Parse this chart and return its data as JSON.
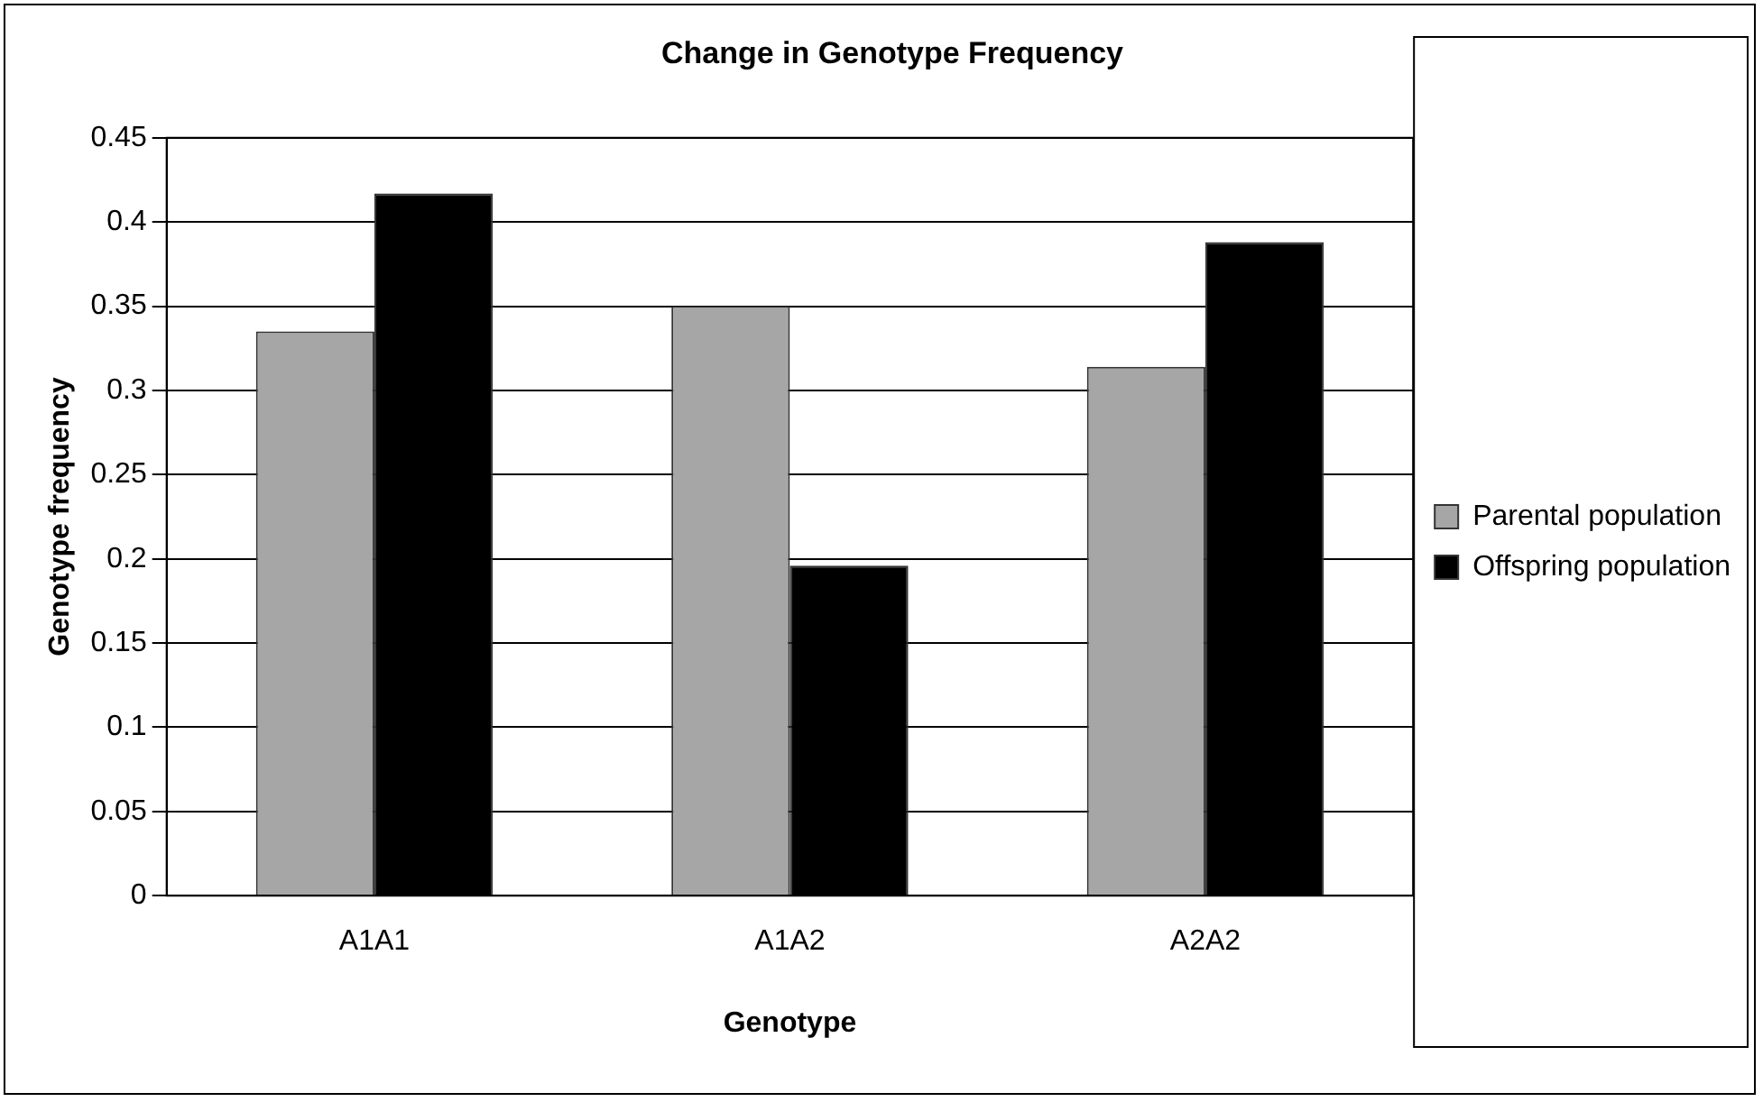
{
  "chart_data": {
    "type": "bar",
    "title": "Change in Genotype Frequency",
    "xlabel": "Genotype",
    "ylabel": "Genotype frequency",
    "categories": [
      "A1A1",
      "A1A2",
      "A2A2"
    ],
    "series": [
      {
        "name": "Parental population",
        "color": "#a6a6a6",
        "values": [
          0.335,
          0.35,
          0.314
        ]
      },
      {
        "name": "Offspring population",
        "color": "#000000",
        "values": [
          0.417,
          0.196,
          0.388
        ]
      }
    ],
    "ylim": [
      0,
      0.45
    ],
    "yticks": [
      0,
      0.05,
      0.1,
      0.15,
      0.2,
      0.25,
      0.3,
      0.35,
      0.4,
      0.45
    ],
    "grid": "y",
    "legend": "right"
  }
}
